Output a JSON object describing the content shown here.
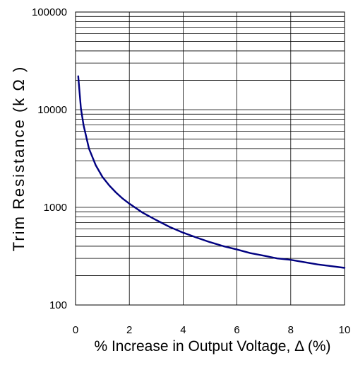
{
  "chart_data": {
    "type": "line",
    "title": "",
    "xlabel": "% Increase in Output Voltage, Δ (%)",
    "ylabel": "Trim Resistance (k  Ω )",
    "xlim": [
      0,
      10
    ],
    "ylim": [
      100,
      100000
    ],
    "yscale": "log",
    "grid": true,
    "x_ticks": [
      "0",
      "2",
      "4",
      "6",
      "8",
      "10"
    ],
    "y_ticks": [
      "100",
      "1000",
      "10000",
      "100000"
    ],
    "line_color": "#000080",
    "series": [
      {
        "x": [
          0.1,
          0.2,
          0.3,
          0.5,
          0.75,
          1.0,
          1.25,
          1.5,
          1.75,
          2.0,
          2.5,
          3.0,
          3.5,
          4.0,
          4.5,
          5.0,
          5.5,
          6.0,
          6.5,
          7.0,
          7.5,
          8.0,
          8.5,
          9.0,
          9.5,
          10.0
        ],
        "y": [
          22000,
          10300,
          6900,
          4000,
          2700,
          2050,
          1680,
          1420,
          1230,
          1090,
          880,
          740,
          630,
          550,
          490,
          440,
          400,
          370,
          340,
          320,
          300,
          290,
          275,
          260,
          250,
          240
        ]
      }
    ]
  }
}
